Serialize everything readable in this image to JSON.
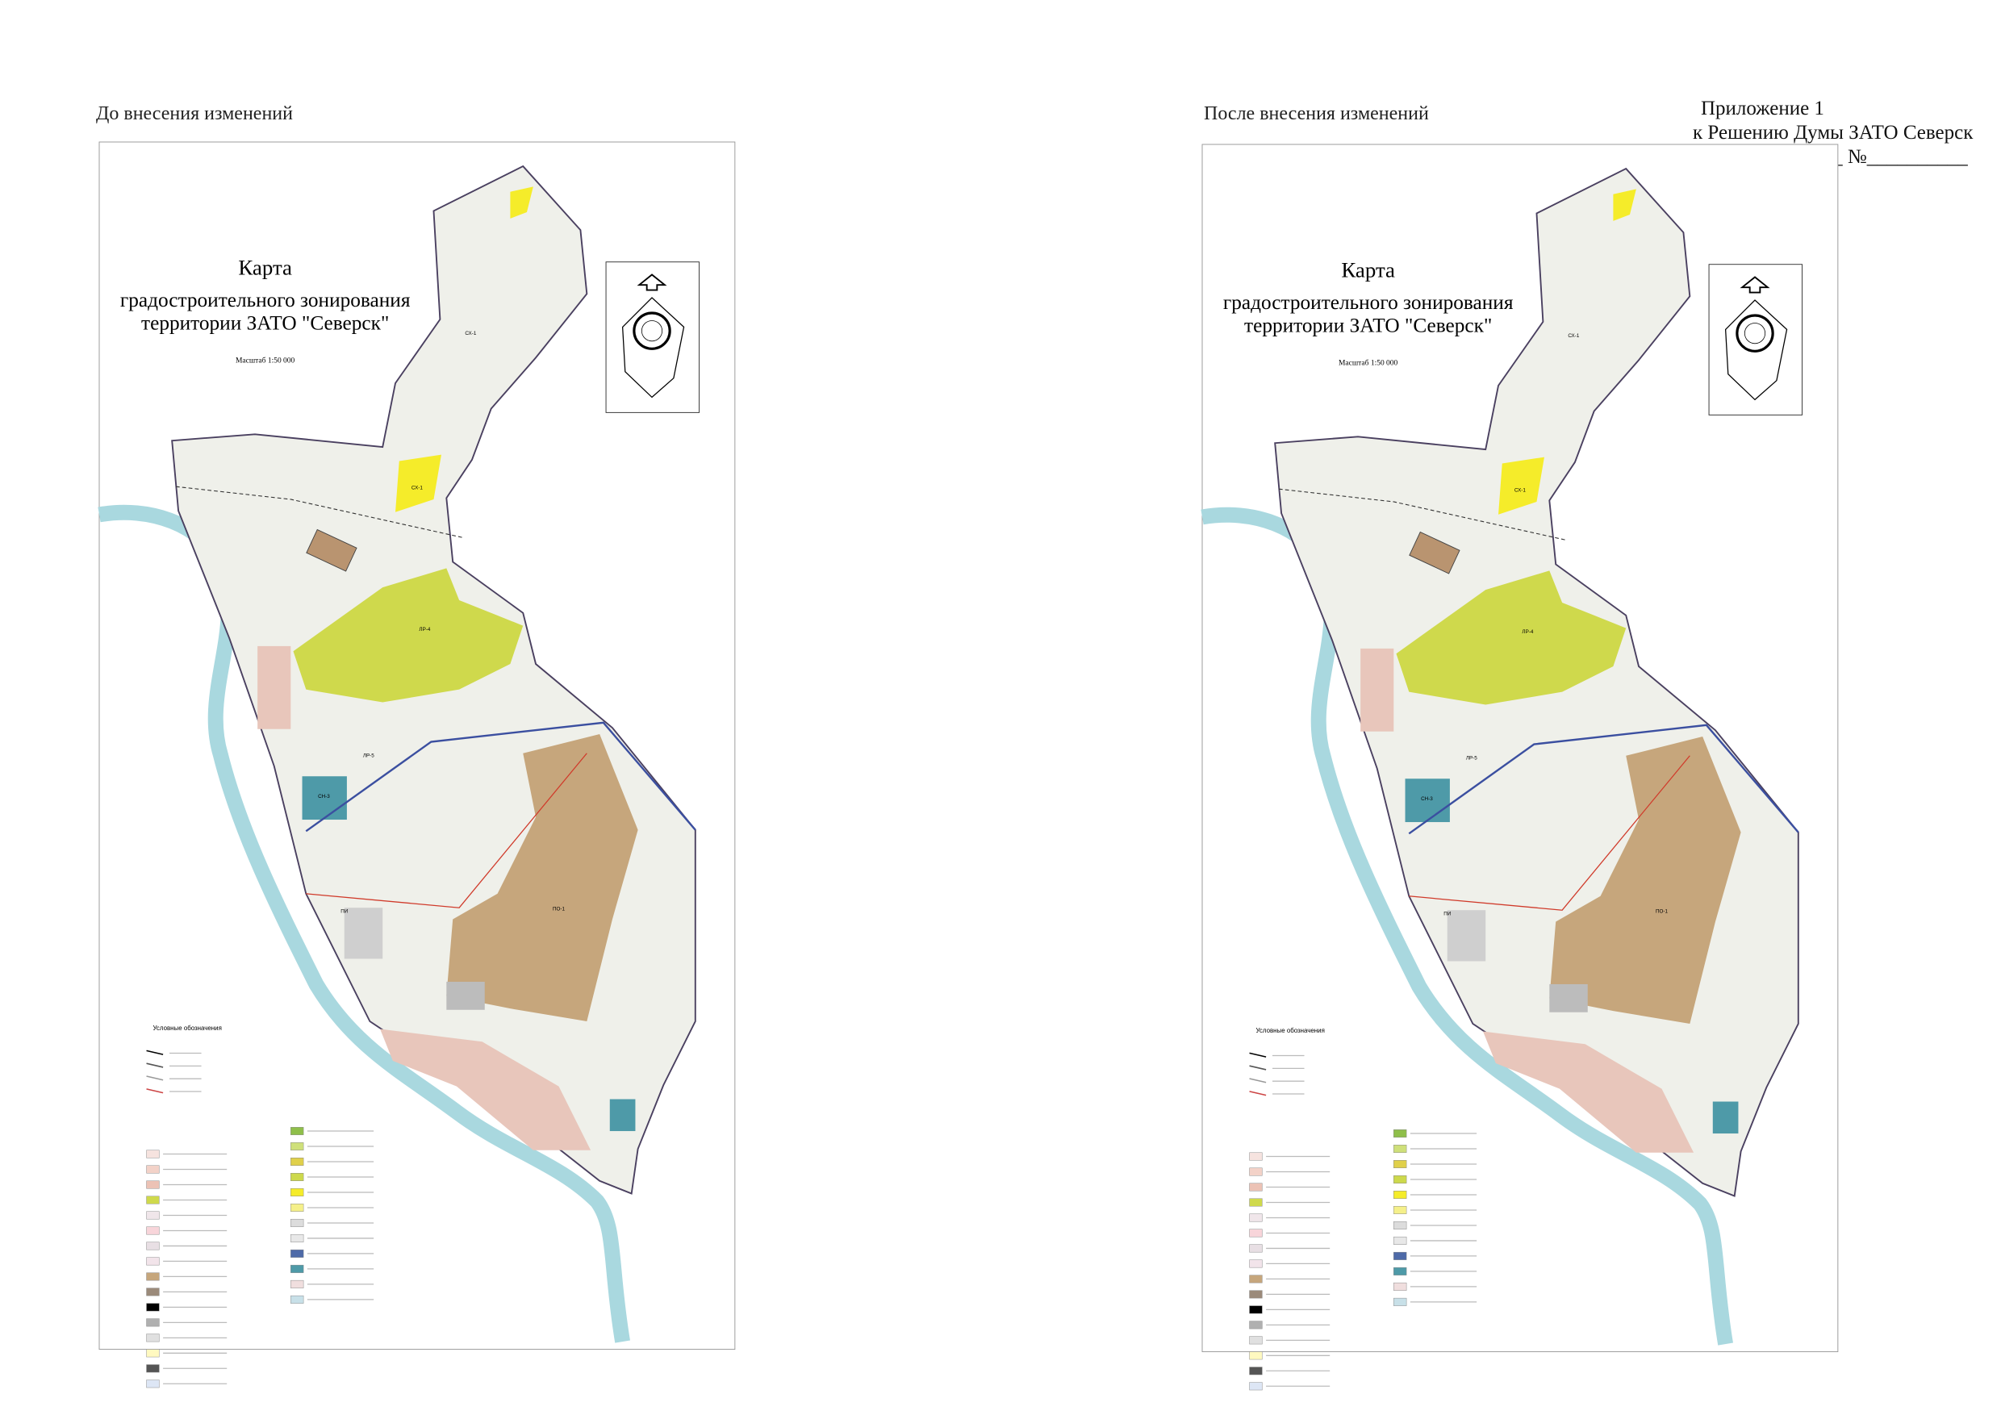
{
  "header": {
    "appendix": "Приложение 1",
    "decision": "к Решению Думы ЗАТО Северск",
    "date_number": "от_____________ №__________"
  },
  "panels": [
    {
      "label": "До внесения изменений",
      "map": {
        "title": [
          "Карта",
          "градостроительного зонирования",
          "территории ЗАТО \"Северск\""
        ],
        "scale": "Масштаб 1:50 000",
        "legend_title": "Условные обозначения",
        "zones": [
          "СХ-1",
          "СХ-1",
          "ЛР-4",
          "СН-3",
          "ПО-1",
          "ПИ",
          "ЛР-5"
        ]
      }
    },
    {
      "label": "После внесения изменений",
      "map": {
        "title": [
          "Карта",
          "градостроительного зонирования",
          "территории ЗАТО \"Северск\""
        ],
        "scale": "Масштаб 1:50 000",
        "legend_title": "Условные обозначения",
        "zones": [
          "СХ-1",
          "СХ-1",
          "ЛР-4",
          "СН-3",
          "ПО-1",
          "ПИ",
          "ЛР-5"
        ]
      }
    }
  ]
}
